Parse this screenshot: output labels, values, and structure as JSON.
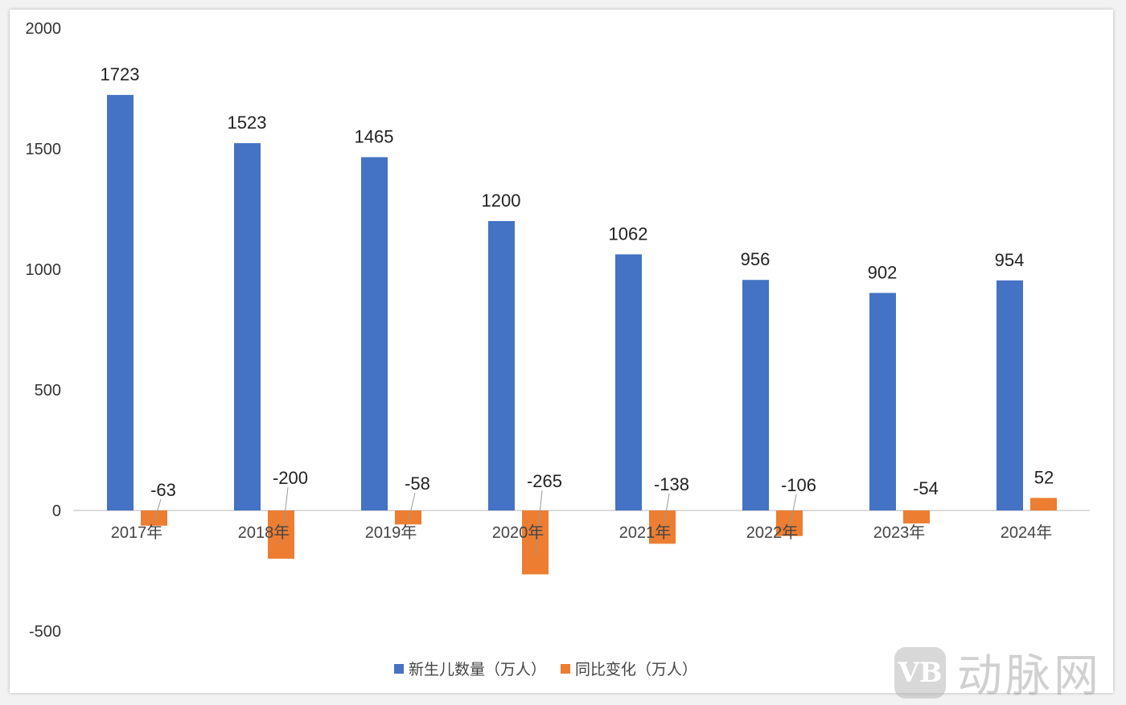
{
  "chart_data": {
    "type": "bar",
    "categories": [
      "2017年",
      "2018年",
      "2019年",
      "2020年",
      "2021年",
      "2022年",
      "2023年",
      "2024年"
    ],
    "series": [
      {
        "name": "新生儿数量（万人）",
        "color": "#4472C4",
        "values": [
          1723,
          1523,
          1465,
          1200,
          1062,
          956,
          902,
          954
        ]
      },
      {
        "name": "同比变化（万人）",
        "color": "#ED7D31",
        "values": [
          -63,
          -200,
          -58,
          -265,
          -138,
          -106,
          -54,
          52
        ]
      }
    ],
    "ylim": [
      -500,
      2000
    ],
    "yticks": [
      2000,
      1500,
      1000,
      500,
      0,
      -500
    ],
    "grid": false,
    "legend": "bottom",
    "xlabel": "",
    "ylabel": "",
    "title": ""
  },
  "watermark": {
    "logo": "VB",
    "text": "动脉网"
  }
}
